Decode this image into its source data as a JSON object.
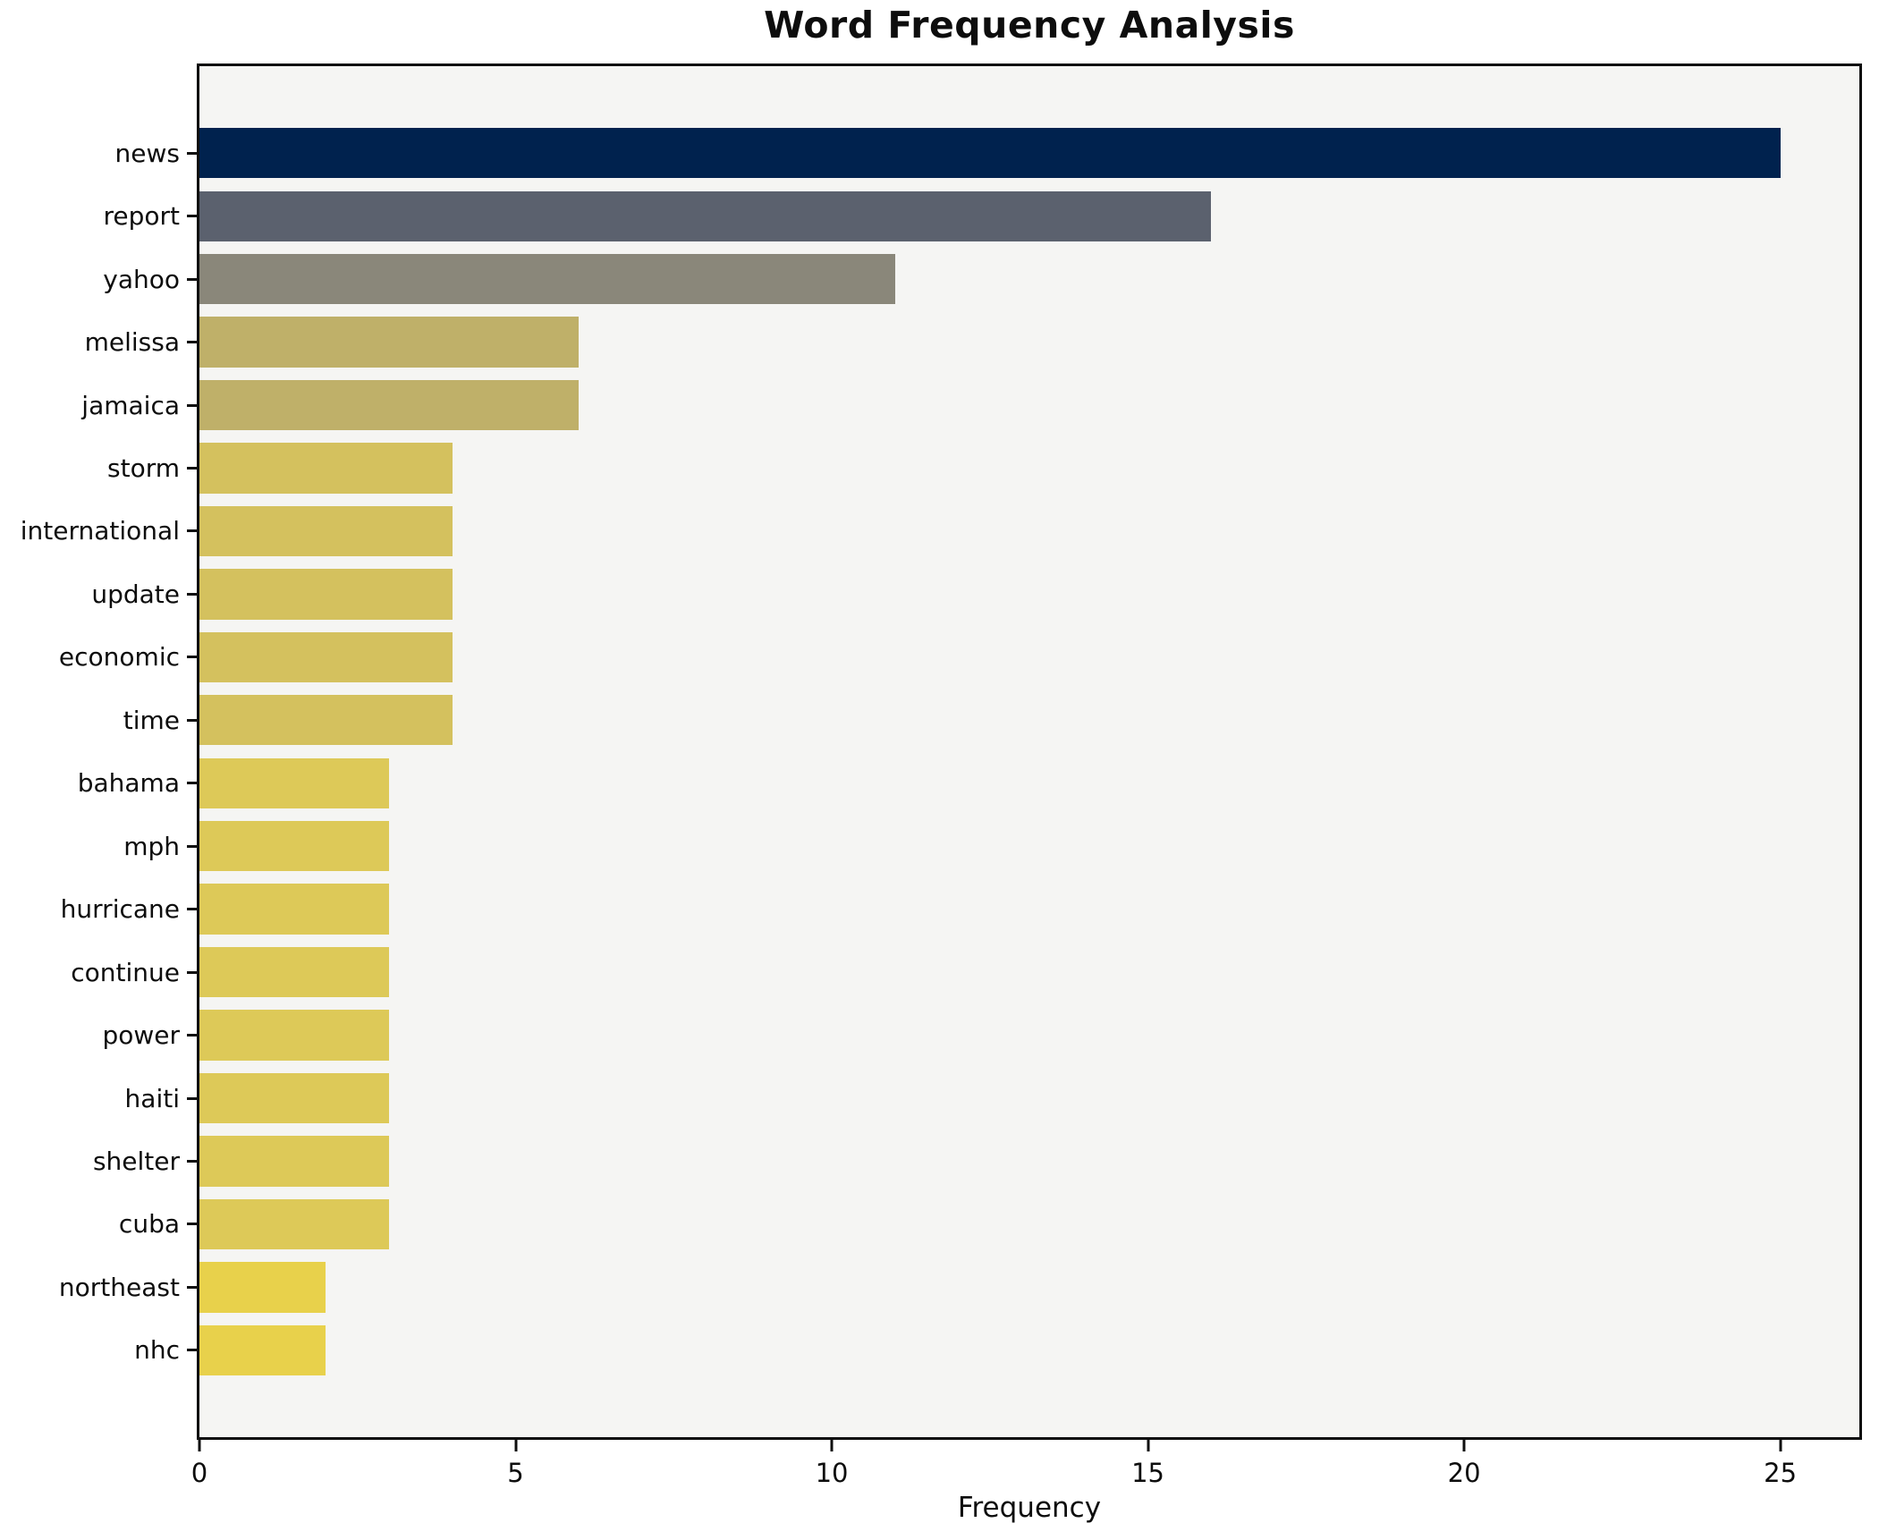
{
  "figure": {
    "background": "#ffffff",
    "plot_background": "#f5f5f3",
    "spine_color": "#0f0f0f"
  },
  "chart_data": {
    "type": "bar",
    "orientation": "horizontal",
    "title": "Word Frequency Analysis",
    "xlabel": "Frequency",
    "ylabel": "",
    "grid": false,
    "legend": null,
    "xlim": [
      0,
      26.25
    ],
    "x_ticks": [
      "0",
      "5",
      "10",
      "15",
      "20",
      "25"
    ],
    "x_tick_values": [
      0,
      5,
      10,
      15,
      20,
      25
    ],
    "categories": [
      "news",
      "report",
      "yahoo",
      "melissa",
      "jamaica",
      "storm",
      "international",
      "update",
      "economic",
      "time",
      "bahama",
      "mph",
      "hurricane",
      "continue",
      "power",
      "haiti",
      "shelter",
      "cuba",
      "northeast",
      "nhc"
    ],
    "values": [
      25,
      16,
      11,
      6,
      6,
      4,
      4,
      4,
      4,
      4,
      3,
      3,
      3,
      3,
      3,
      3,
      3,
      3,
      2,
      2
    ],
    "bar_colors": [
      "#00224e",
      "#5b616e",
      "#8a877a",
      "#bfb069",
      "#bfb069",
      "#d4c15e",
      "#d4c15e",
      "#d4c15e",
      "#d4c15e",
      "#d4c15e",
      "#ddc958",
      "#ddc958",
      "#ddc958",
      "#ddc958",
      "#ddc958",
      "#ddc958",
      "#ddc958",
      "#ddc958",
      "#e8d14b",
      "#e8d14b"
    ],
    "colormap": "cividis_r"
  }
}
